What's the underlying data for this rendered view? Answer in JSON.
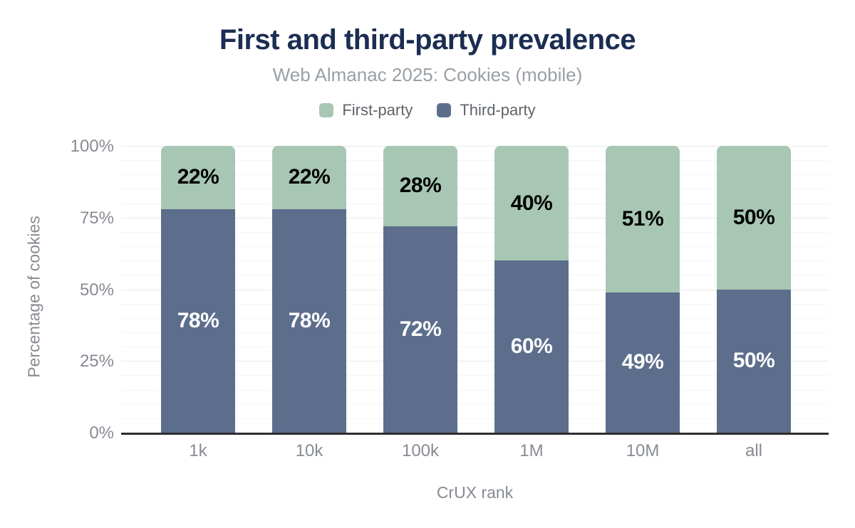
{
  "chart_data": {
    "type": "bar",
    "stacked": true,
    "title": "First and third-party prevalence",
    "subtitle": "Web Almanac 2025: Cookies (mobile)",
    "categories": [
      "1k",
      "10k",
      "100k",
      "1M",
      "10M",
      "all"
    ],
    "series": [
      {
        "name": "First-party",
        "color": "#a7c7b4",
        "label_color": "#000000",
        "values": [
          22,
          22,
          28,
          40,
          51,
          50
        ]
      },
      {
        "name": "Third-party",
        "color": "#5d6e8c",
        "label_color": "#ffffff",
        "values": [
          78,
          78,
          72,
          60,
          49,
          50
        ]
      }
    ],
    "value_suffix": "%",
    "xlabel": "CrUX rank",
    "ylabel": "Percentage of cookies",
    "ylim": [
      0,
      100
    ],
    "yticks": [
      0,
      25,
      50,
      75,
      100
    ],
    "ytick_suffix": "%",
    "grid": {
      "on": true,
      "minor_step": 5,
      "major_step": 25
    },
    "legend_position": "top"
  },
  "colors": {
    "title": "#1c2d52",
    "subtitle": "#9aa0a5",
    "tick_label": "#878b92",
    "axis_title": "#878b92",
    "legend_label": "#5f6469",
    "axis_line": "#2d2d2d",
    "grid_minor": "#f5f5f5",
    "grid_major": "#e9e9e9",
    "background": "#ffffff"
  }
}
